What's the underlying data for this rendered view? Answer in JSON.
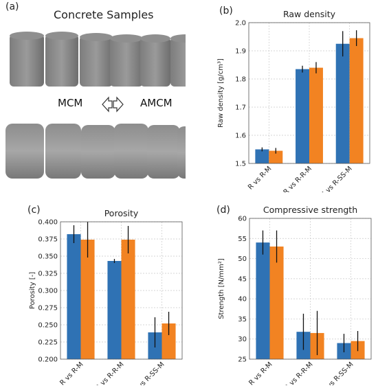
{
  "panel_letters": {
    "a": "(a)",
    "b": "(b)",
    "c": "(c)",
    "d": "(d)"
  },
  "photo": {
    "title": "Concrete Samples",
    "left_label": "MCM",
    "right_label": "AMCM",
    "arrow_icon": "double-arrow-icon"
  },
  "colors": {
    "series_1": "#2f72b4",
    "series_2": "#f28322",
    "errorbar": "#111111",
    "grid": "#c8c8c8"
  },
  "chart_data": [
    {
      "id": "raw-density",
      "type": "bar",
      "title": "Raw density",
      "xlabel": "",
      "ylabel": "Raw density [g/cm³]",
      "ylim": [
        1.5,
        2.0
      ],
      "yticks": [
        "1.5",
        "1.6",
        "1.7",
        "1.8",
        "1.9",
        "2.0"
      ],
      "ytick_values": [
        1.5,
        1.6,
        1.7,
        1.8,
        1.9,
        2.0
      ],
      "categories": [
        "R vs R-M",
        "R-R vs R-R-M",
        "R-SS vs R-SS-M"
      ],
      "series": [
        {
          "values": [
            1.55,
            1.835,
            1.925
          ],
          "errors": [
            0.007,
            0.012,
            0.045
          ]
        },
        {
          "values": [
            1.545,
            1.84,
            1.945
          ],
          "errors": [
            0.01,
            0.02,
            0.028
          ]
        }
      ],
      "grid": true
    },
    {
      "id": "porosity",
      "type": "bar",
      "title": "Porosity",
      "xlabel": "",
      "ylabel": "Porosity [-]",
      "ylim": [
        0.2,
        0.4
      ],
      "yticks": [
        "0.200",
        "0.225",
        "0.250",
        "0.275",
        "0.300",
        "0.325",
        "0.350",
        "0.375",
        "0.400"
      ],
      "ytick_values": [
        0.2,
        0.225,
        0.25,
        0.275,
        0.3,
        0.325,
        0.35,
        0.375,
        0.4
      ],
      "categories": [
        "R vs R-M",
        "R-R vs R-R-M",
        "R-SS vs R-SS-M"
      ],
      "series": [
        {
          "values": [
            0.382,
            0.343,
            0.239
          ],
          "errors": [
            0.013,
            0.003,
            0.022
          ]
        },
        {
          "values": [
            0.374,
            0.374,
            0.252
          ],
          "errors": [
            0.026,
            0.02,
            0.017
          ]
        }
      ],
      "grid": true
    },
    {
      "id": "compressive-strength",
      "type": "bar",
      "title": "Compressive strength",
      "xlabel": "",
      "ylabel": "Strength [N/mm²]",
      "ylim": [
        25,
        60
      ],
      "yticks": [
        "25",
        "30",
        "35",
        "40",
        "45",
        "50",
        "55",
        "60"
      ],
      "ytick_values": [
        25,
        30,
        35,
        40,
        45,
        50,
        55,
        60
      ],
      "categories": [
        "R vs R-M",
        "R-R vs R-R-M",
        "R-SS vs R-SS-M"
      ],
      "series": [
        {
          "values": [
            54,
            31.8,
            29
          ],
          "errors": [
            3,
            4.5,
            2.3
          ]
        },
        {
          "values": [
            53,
            31.5,
            29.5
          ],
          "errors": [
            4,
            5.5,
            2.5
          ]
        }
      ],
      "grid": true
    }
  ]
}
